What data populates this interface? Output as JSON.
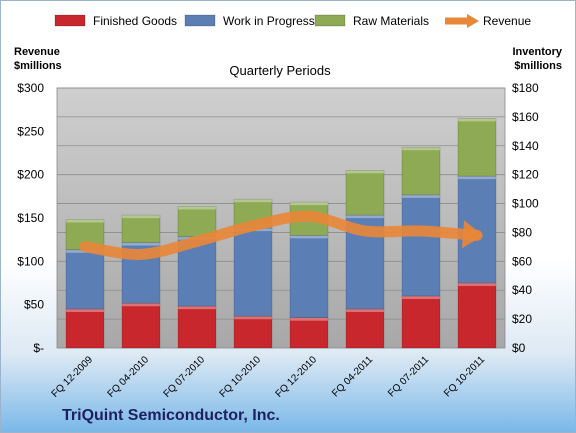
{
  "chart_data": {
    "type": "bar",
    "title": "Quarterly Periods",
    "categories": [
      "FQ 12-2009",
      "FQ 04-2010",
      "FQ 07-2010",
      "FQ 10-2010",
      "FQ 12-2010",
      "FQ 04-2011",
      "FQ 07-2011",
      "FQ 10-2011"
    ],
    "stacked_series": [
      {
        "name": "Finished Goods",
        "color": "#c8282d",
        "values": [
          27,
          31,
          29,
          22,
          21,
          27,
          36,
          45
        ]
      },
      {
        "name": "Work in Progress",
        "color": "#5b7fb5",
        "values": [
          41,
          42,
          48,
          61,
          57,
          65,
          70,
          74
        ]
      },
      {
        "name": "Raw Materials",
        "color": "#8eaa55",
        "values": [
          21,
          19,
          21,
          20,
          23,
          31,
          33,
          40
        ]
      }
    ],
    "line_series": {
      "name": "Revenue",
      "color": "#e8873a",
      "values": [
        117,
        108,
        123,
        141,
        152,
        135,
        135,
        130
      ]
    },
    "left_axis": {
      "label_line1": "Revenue",
      "label_line2": "$millions",
      "ylim": [
        0,
        300
      ],
      "ticks": [
        0,
        50,
        100,
        150,
        200,
        250,
        300
      ],
      "tick_labels": [
        "$-",
        "$50",
        "$100",
        "$150",
        "$200",
        "$250",
        "$300"
      ]
    },
    "right_axis": {
      "label_line1": "Inventory",
      "label_line2": "$millions",
      "ylim": [
        0,
        180
      ],
      "ticks": [
        0,
        20,
        40,
        60,
        80,
        100,
        120,
        140,
        160,
        180
      ],
      "tick_labels": [
        "$0",
        "$20",
        "$40",
        "$60",
        "$80",
        "$100",
        "$120",
        "$140",
        "$160",
        "$180"
      ]
    },
    "grid": true,
    "legend_position": "top"
  },
  "company": "TriQuint Semiconductor, Inc."
}
